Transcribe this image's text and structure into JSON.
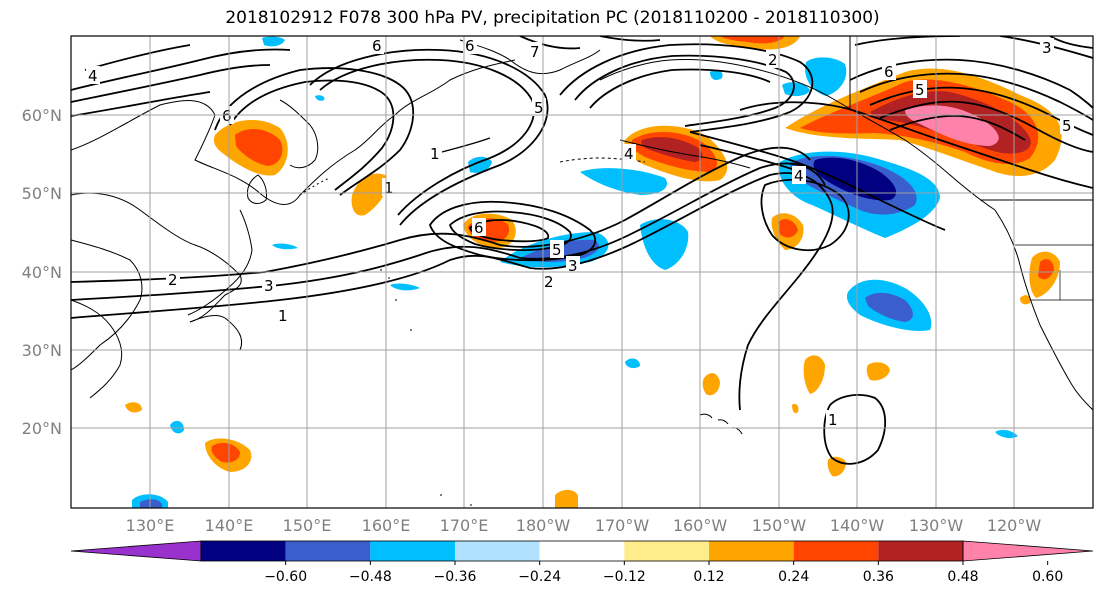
{
  "title": "2018102912 F078 300 hPa PV, precipitation PC (2018110200 - 2018110300)",
  "map": {
    "lat_ticks": [
      "60°N",
      "50°N",
      "40°N",
      "30°N",
      "20°N"
    ],
    "lon_ticks": [
      "130°E",
      "140°E",
      "150°E",
      "160°E",
      "170°E",
      "180°W",
      "170°W",
      "160°W",
      "150°W",
      "140°W",
      "130°W",
      "120°W"
    ],
    "pv_contour_labels": [
      "4",
      "6",
      "6",
      "7",
      "6",
      "5",
      "1",
      "1",
      "2",
      "3",
      "1",
      "6",
      "5",
      "3",
      "2",
      "5",
      "4",
      "2",
      "6",
      "3",
      "5",
      "4",
      "1"
    ]
  },
  "colorbar": {
    "colors": [
      "#9932cc",
      "#000080",
      "#3a5fcd",
      "#00bfff",
      "#b0e2ff",
      "#ffffff",
      "#ffec8b",
      "#ffa500",
      "#ff4500",
      "#b22222",
      "#ff82ab"
    ],
    "tick_labels": [
      "−0.60",
      "−0.48",
      "−0.36",
      "−0.24",
      "−0.12",
      "0.12",
      "0.24",
      "0.36",
      "0.48",
      "0.60"
    ]
  }
}
